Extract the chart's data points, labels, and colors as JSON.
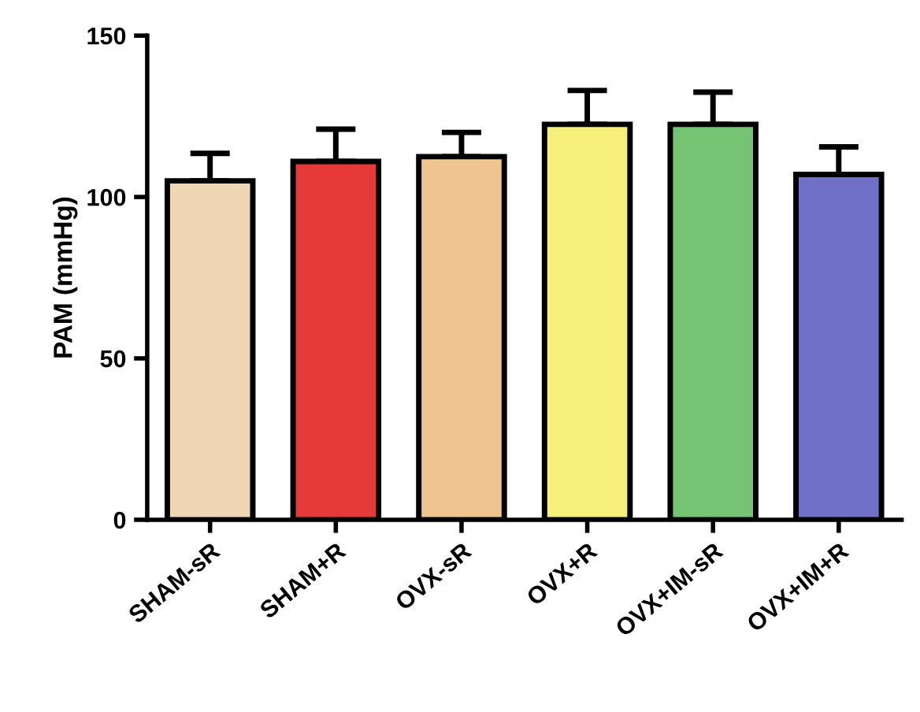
{
  "chart_data": {
    "type": "bar",
    "ylabel": "PAM (mmHg)",
    "categories": [
      "SHAM-sR",
      "SHAM+R",
      "OVX-sR",
      "OVX+R",
      "OVX+IM-sR",
      "OVX+IM+R"
    ],
    "values": [
      105,
      111,
      112.5,
      122.5,
      122.5,
      107
    ],
    "errors": [
      [
        105,
        113.5
      ],
      [
        111,
        121
      ],
      [
        112.5,
        120
      ],
      [
        122.5,
        133
      ],
      [
        122.5,
        132.5
      ],
      [
        107,
        115.5
      ]
    ],
    "colors": [
      "#efd6b4",
      "#e63a3a",
      "#f0c48e",
      "#f6f07a",
      "#74c474",
      "#7070c8"
    ],
    "ylim": [
      0,
      150
    ],
    "yticks": [
      0,
      50,
      100,
      150
    ],
    "grid": false
  }
}
